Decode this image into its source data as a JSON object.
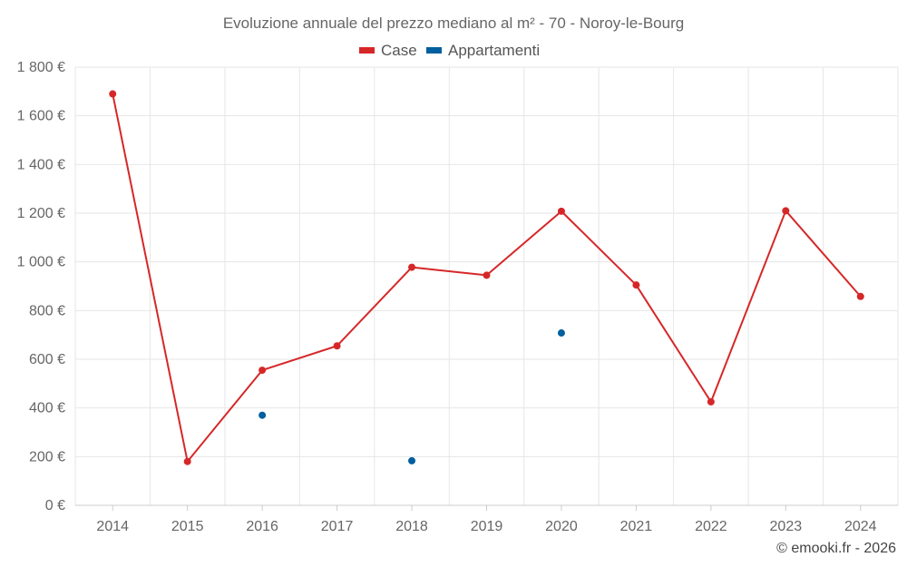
{
  "chart_data": {
    "type": "line",
    "title": "Evoluzione annuale del prezzo mediano al m² - 70 - Noroy-le-Bourg",
    "categories": [
      "2014",
      "2015",
      "2016",
      "2017",
      "2018",
      "2019",
      "2020",
      "2021",
      "2022",
      "2023",
      "2024"
    ],
    "series": [
      {
        "name": "Case",
        "color": "#d62728",
        "values": [
          1690,
          180,
          555,
          655,
          978,
          945,
          1208,
          905,
          425,
          1210,
          858
        ]
      },
      {
        "name": "Appartamenti",
        "color": "#005f9e",
        "values": [
          null,
          null,
          370,
          null,
          183,
          null,
          708,
          null,
          null,
          null,
          null
        ]
      }
    ],
    "ylim": [
      0,
      1800
    ],
    "yticks": [
      0,
      200,
      400,
      600,
      800,
      1000,
      1200,
      1400,
      1600,
      1800
    ],
    "ytick_labels": [
      "0 €",
      "200 €",
      "400 €",
      "600 €",
      "800 €",
      "1 000 €",
      "1 200 €",
      "1 400 €",
      "1 600 €",
      "1 800 €"
    ],
    "xlabel": "",
    "ylabel": "",
    "grid": true,
    "legend_position": "top-center"
  },
  "credit": "© emooki.fr - 2026"
}
